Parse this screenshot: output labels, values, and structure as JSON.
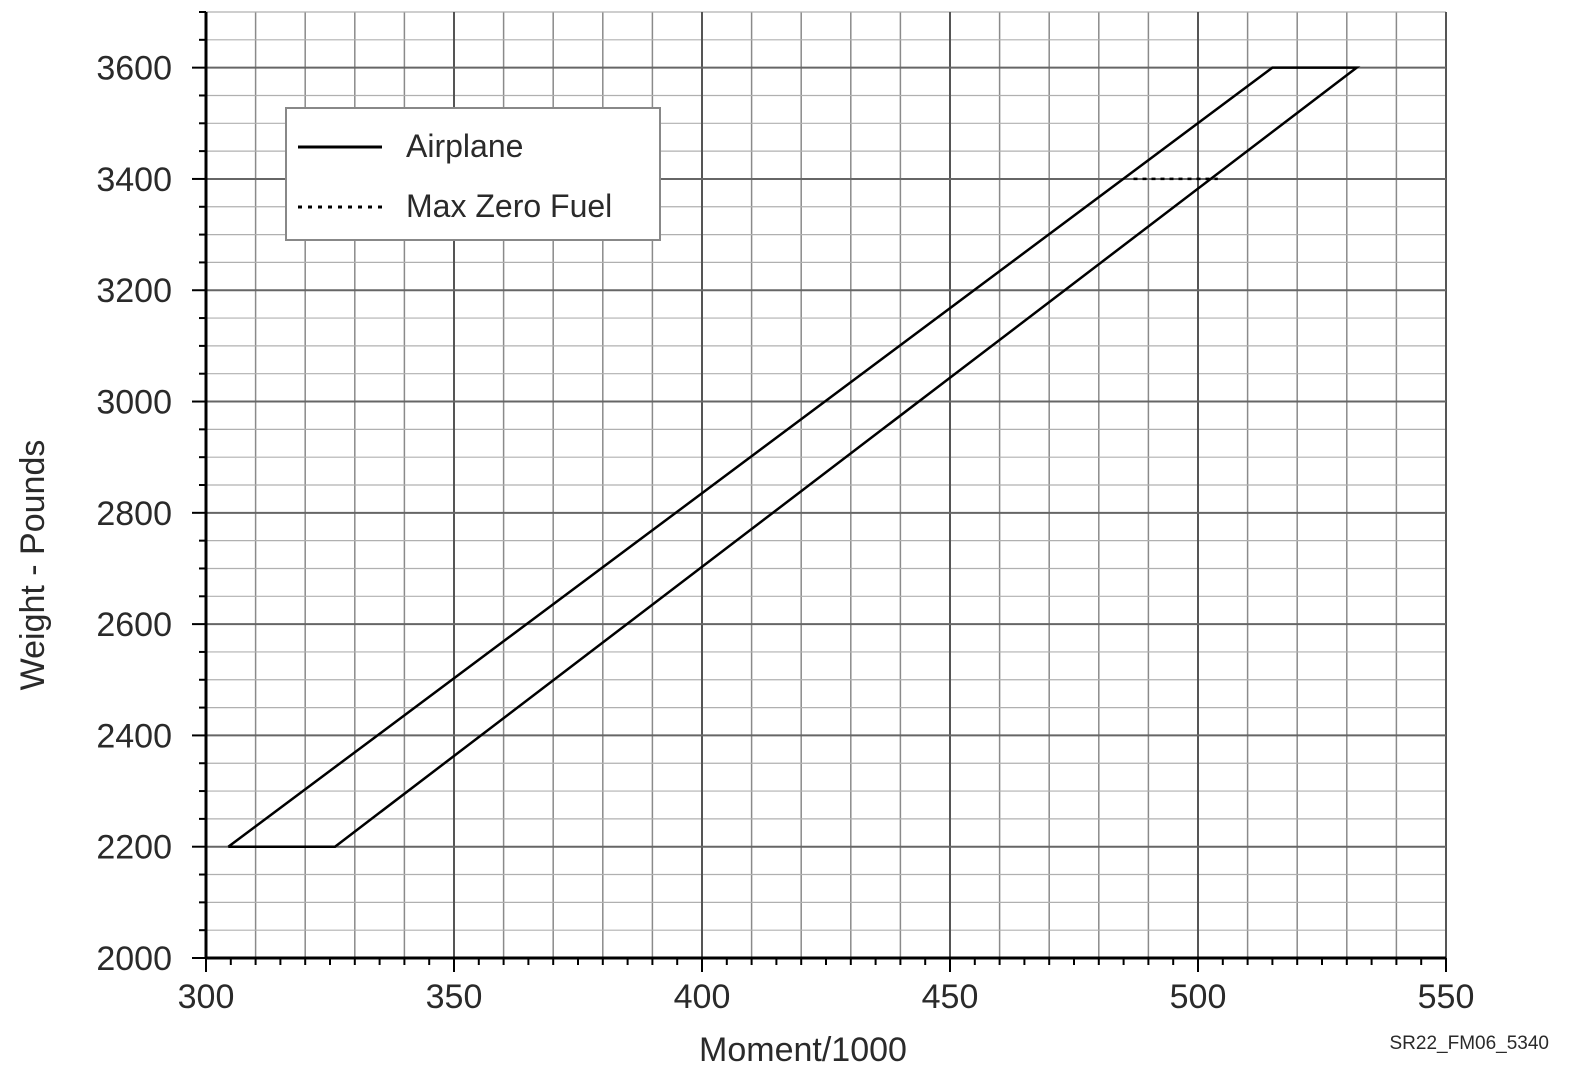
{
  "chart_data": {
    "type": "line",
    "title": "",
    "xlabel": "Moment/1000",
    "ylabel": "Weight - Pounds",
    "xlim": [
      300,
      550
    ],
    "ylim": [
      2000,
      3700
    ],
    "x_ticks": [
      300,
      350,
      400,
      450,
      500,
      550
    ],
    "y_ticks": [
      2000,
      2200,
      2400,
      2600,
      2800,
      3000,
      3200,
      3400,
      3600
    ],
    "grid": true,
    "legend_position": "top-left",
    "figure_id": "SR22_FM06_5340",
    "series": [
      {
        "name": "Airplane",
        "style": "solid",
        "color": "#000000",
        "points": [
          [
            304.5,
            2200
          ],
          [
            326,
            2200
          ],
          [
            532,
            3600
          ],
          [
            515,
            3600
          ],
          [
            304.5,
            2200
          ]
        ]
      },
      {
        "name": "Max Zero Fuel",
        "style": "dotted",
        "color": "#000000",
        "points": [
          [
            487,
            3400
          ],
          [
            504,
            3400
          ]
        ]
      }
    ]
  }
}
